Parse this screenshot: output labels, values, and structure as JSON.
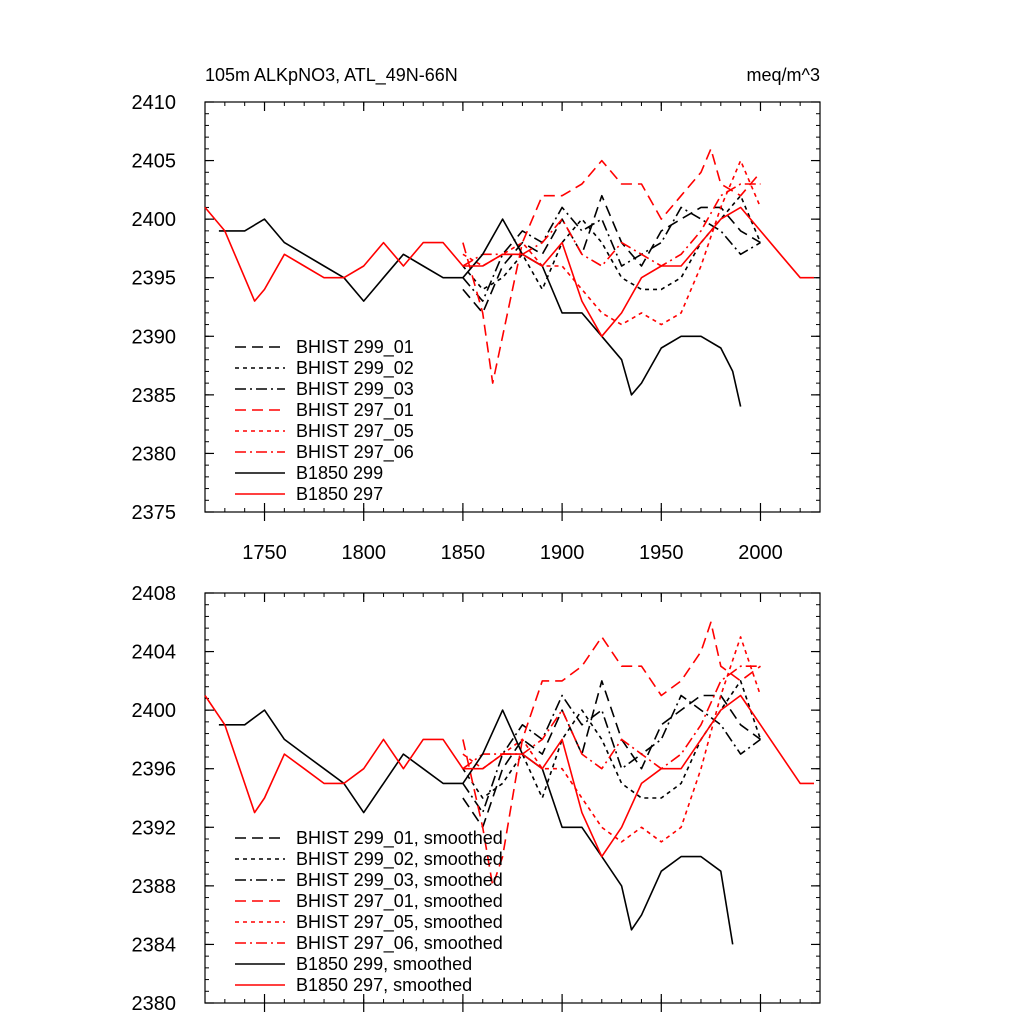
{
  "title": {
    "left": "105m ALKpNO3, ATL_49N-66N",
    "right": "meq/m^3"
  },
  "chart_data": [
    {
      "type": "line",
      "title": "105m ALKpNO3, ATL_49N-66N",
      "units": "meq/m^3",
      "xlim": [
        1720,
        2030
      ],
      "ylim": [
        2375,
        2410
      ],
      "xticks": [
        1750,
        1800,
        1850,
        1900,
        1950,
        2000
      ],
      "yticks": [
        2375,
        2380,
        2385,
        2390,
        2395,
        2400,
        2405,
        2410
      ],
      "grid": false,
      "legend_position": "bottom-left",
      "series": [
        {
          "name": "BHIST 299_01",
          "color": "#000000",
          "dash": "long-dash",
          "x": [
            1850,
            1860,
            1870,
            1880,
            1890,
            1900,
            1910,
            1920,
            1930,
            1940,
            1950,
            1960,
            1970,
            1980,
            1990,
            2000
          ],
          "y": [
            2394,
            2392,
            2396,
            2398,
            2397,
            2400,
            2397,
            2402,
            2398,
            2396,
            2399,
            2400,
            2401,
            2401,
            2399,
            2398
          ]
        },
        {
          "name": "BHIST 299_02",
          "color": "#000000",
          "dash": "short-dash",
          "x": [
            1850,
            1860,
            1870,
            1880,
            1890,
            1900,
            1910,
            1920,
            1930,
            1940,
            1950,
            1960,
            1970,
            1980,
            1990,
            2000
          ],
          "y": [
            2396,
            2394,
            2395,
            2397,
            2394,
            2398,
            2400,
            2398,
            2395,
            2394,
            2394,
            2395,
            2398,
            2400,
            2402,
            2398
          ]
        },
        {
          "name": "BHIST 299_03",
          "color": "#000000",
          "dash": "dash-dot",
          "x": [
            1850,
            1860,
            1870,
            1880,
            1890,
            1900,
            1910,
            1920,
            1930,
            1940,
            1950,
            1960,
            1970,
            1980,
            1990,
            2000
          ],
          "y": [
            2395,
            2393,
            2397,
            2399,
            2398,
            2401,
            2399,
            2400,
            2396,
            2397,
            2398,
            2401,
            2400,
            2399,
            2397,
            2398
          ]
        },
        {
          "name": "BHIST 297_01",
          "color": "#ff0000",
          "dash": "long-dash",
          "x": [
            1850,
            1860,
            1865,
            1870,
            1880,
            1890,
            1900,
            1910,
            1920,
            1930,
            1940,
            1950,
            1960,
            1970,
            1975,
            1980,
            1990,
            2000
          ],
          "y": [
            2398,
            2392,
            2386,
            2390,
            2398,
            2402,
            2402,
            2403,
            2405,
            2403,
            2403,
            2400,
            2402,
            2404,
            2406,
            2403,
            2402,
            2404
          ]
        },
        {
          "name": "BHIST 297_05",
          "color": "#ff0000",
          "dash": "short-dash",
          "x": [
            1850,
            1860,
            1870,
            1880,
            1890,
            1900,
            1910,
            1920,
            1930,
            1940,
            1950,
            1960,
            1970,
            1980,
            1990,
            2000
          ],
          "y": [
            2397,
            2396,
            2397,
            2398,
            2396,
            2396,
            2394,
            2392,
            2391,
            2392,
            2391,
            2392,
            2396,
            2401,
            2405,
            2401
          ]
        },
        {
          "name": "BHIST 297_06",
          "color": "#ff0000",
          "dash": "dash-dot",
          "x": [
            1850,
            1860,
            1870,
            1880,
            1890,
            1900,
            1910,
            1920,
            1930,
            1940,
            1950,
            1960,
            1970,
            1980,
            1990,
            2000
          ],
          "y": [
            2396,
            2397,
            2397,
            2397,
            2398,
            2400,
            2397,
            2396,
            2398,
            2397,
            2396,
            2397,
            2399,
            2402,
            2403,
            2403
          ]
        },
        {
          "name": "B1850 299",
          "color": "#000000",
          "dash": "solid",
          "x": [
            1727,
            1740,
            1750,
            1760,
            1770,
            1780,
            1790,
            1800,
            1810,
            1820,
            1830,
            1840,
            1850,
            1860,
            1870,
            1880,
            1890,
            1900,
            1910,
            1920,
            1930,
            1935,
            1940,
            1950,
            1960,
            1970,
            1980,
            1986,
            1990
          ],
          "y": [
            2399,
            2399,
            2400,
            2398,
            2397,
            2396,
            2395,
            2393,
            2395,
            2397,
            2396,
            2395,
            2395,
            2397,
            2400,
            2397,
            2396,
            2392,
            2392,
            2390,
            2388,
            2385,
            2386,
            2389,
            2390,
            2390,
            2389,
            2387,
            2384
          ]
        },
        {
          "name": "B1850 297",
          "color": "#ff0000",
          "dash": "solid",
          "x": [
            1720,
            1730,
            1740,
            1745,
            1750,
            1760,
            1770,
            1780,
            1790,
            1800,
            1810,
            1820,
            1830,
            1840,
            1850,
            1860,
            1870,
            1880,
            1890,
            1900,
            1910,
            1920,
            1930,
            1940,
            1950,
            1960,
            1970,
            1980,
            1990,
            2000,
            2010,
            2020,
            2027
          ],
          "y": [
            2401,
            2399,
            2395,
            2393,
            2394,
            2397,
            2396,
            2395,
            2395,
            2396,
            2398,
            2396,
            2398,
            2398,
            2396,
            2396,
            2397,
            2397,
            2396,
            2398,
            2393,
            2390,
            2392,
            2395,
            2396,
            2396,
            2398,
            2400,
            2401,
            2399,
            2397,
            2395,
            2395
          ]
        }
      ],
      "legend": [
        "BHIST 299_01",
        "BHIST 299_02",
        "BHIST 299_03",
        "BHIST 297_01",
        "BHIST 297_05",
        "BHIST 297_06",
        "B1850 299",
        "B1850 297"
      ]
    },
    {
      "type": "line",
      "xlim": [
        1720,
        2030
      ],
      "ylim": [
        2380,
        2408
      ],
      "xticks": [
        1750,
        1800,
        1850,
        1900,
        1950,
        2000
      ],
      "yticks": [
        2380,
        2384,
        2388,
        2392,
        2396,
        2400,
        2404,
        2408
      ],
      "grid": false,
      "legend_position": "bottom-left",
      "series": [
        {
          "name": "BHIST 299_01, smoothed",
          "color": "#000000",
          "dash": "long-dash",
          "x": [
            1850,
            1860,
            1870,
            1880,
            1890,
            1900,
            1910,
            1920,
            1930,
            1940,
            1950,
            1960,
            1970,
            1980,
            1990,
            2000
          ],
          "y": [
            2394,
            2392,
            2396,
            2398,
            2397,
            2400,
            2397,
            2402,
            2398,
            2396,
            2399,
            2400,
            2401,
            2401,
            2399,
            2398
          ]
        },
        {
          "name": "BHIST 299_02, smoothed",
          "color": "#000000",
          "dash": "short-dash",
          "x": [
            1850,
            1860,
            1870,
            1880,
            1890,
            1900,
            1910,
            1920,
            1930,
            1940,
            1950,
            1960,
            1970,
            1980,
            1990,
            2000
          ],
          "y": [
            2396,
            2394,
            2395,
            2397,
            2394,
            2398,
            2400,
            2398,
            2395,
            2394,
            2394,
            2395,
            2398,
            2400,
            2402,
            2398
          ]
        },
        {
          "name": "BHIST 299_03, smoothed",
          "color": "#000000",
          "dash": "dash-dot",
          "x": [
            1850,
            1860,
            1870,
            1880,
            1890,
            1900,
            1910,
            1920,
            1930,
            1940,
            1950,
            1960,
            1970,
            1980,
            1990,
            2000
          ],
          "y": [
            2395,
            2393,
            2397,
            2399,
            2398,
            2401,
            2399,
            2400,
            2396,
            2397,
            2398,
            2401,
            2400,
            2399,
            2397,
            2398
          ]
        },
        {
          "name": "BHIST 297_01, smoothed",
          "color": "#ff0000",
          "dash": "long-dash",
          "x": [
            1850,
            1860,
            1865,
            1870,
            1880,
            1890,
            1900,
            1910,
            1920,
            1930,
            1940,
            1950,
            1960,
            1970,
            1975,
            1980,
            1990,
            2000
          ],
          "y": [
            2398,
            2392,
            2388,
            2390,
            2398,
            2402,
            2402,
            2403,
            2405,
            2403,
            2403,
            2401,
            2402,
            2404,
            2406,
            2403,
            2402,
            2403
          ]
        },
        {
          "name": "BHIST 297_05, smoothed",
          "color": "#ff0000",
          "dash": "short-dash",
          "x": [
            1850,
            1860,
            1870,
            1880,
            1890,
            1900,
            1910,
            1920,
            1930,
            1940,
            1950,
            1960,
            1970,
            1980,
            1990,
            2000
          ],
          "y": [
            2397,
            2396,
            2397,
            2398,
            2396,
            2396,
            2394,
            2392,
            2391,
            2392,
            2391,
            2392,
            2396,
            2401,
            2405,
            2401
          ]
        },
        {
          "name": "BHIST 297_06, smoothed",
          "color": "#ff0000",
          "dash": "dash-dot",
          "x": [
            1850,
            1860,
            1870,
            1880,
            1890,
            1900,
            1910,
            1920,
            1930,
            1940,
            1950,
            1960,
            1970,
            1980,
            1990,
            2000
          ],
          "y": [
            2396,
            2397,
            2397,
            2397,
            2398,
            2400,
            2397,
            2396,
            2398,
            2397,
            2396,
            2397,
            2399,
            2402,
            2403,
            2403
          ]
        },
        {
          "name": "B1850 299, smoothed",
          "color": "#000000",
          "dash": "solid",
          "x": [
            1727,
            1740,
            1750,
            1760,
            1770,
            1780,
            1790,
            1800,
            1810,
            1820,
            1830,
            1840,
            1850,
            1860,
            1870,
            1880,
            1890,
            1900,
            1910,
            1920,
            1930,
            1935,
            1940,
            1950,
            1960,
            1970,
            1980,
            1986
          ],
          "y": [
            2399,
            2399,
            2400,
            2398,
            2397,
            2396,
            2395,
            2393,
            2395,
            2397,
            2396,
            2395,
            2395,
            2397,
            2400,
            2397,
            2396,
            2392,
            2392,
            2390,
            2388,
            2385,
            2386,
            2389,
            2390,
            2390,
            2389,
            2384
          ]
        },
        {
          "name": "B1850 297, smoothed",
          "color": "#ff0000",
          "dash": "solid",
          "x": [
            1720,
            1730,
            1740,
            1745,
            1750,
            1760,
            1770,
            1780,
            1790,
            1800,
            1810,
            1820,
            1830,
            1840,
            1850,
            1860,
            1870,
            1880,
            1890,
            1900,
            1910,
            1920,
            1930,
            1940,
            1950,
            1960,
            1970,
            1980,
            1990,
            2000,
            2010,
            2020,
            2027
          ],
          "y": [
            2401,
            2399,
            2395,
            2393,
            2394,
            2397,
            2396,
            2395,
            2395,
            2396,
            2398,
            2396,
            2398,
            2398,
            2396,
            2396,
            2397,
            2397,
            2396,
            2398,
            2393,
            2390,
            2392,
            2395,
            2396,
            2396,
            2398,
            2400,
            2401,
            2399,
            2397,
            2395,
            2395
          ]
        }
      ],
      "legend": [
        "BHIST 299_01, smoothed",
        "BHIST 299_02, smoothed",
        "BHIST 299_03, smoothed",
        "BHIST 297_01, smoothed",
        "BHIST 297_05, smoothed",
        "BHIST 297_06, smoothed",
        "B1850 299, smoothed",
        "B1850 297, smoothed"
      ]
    }
  ]
}
